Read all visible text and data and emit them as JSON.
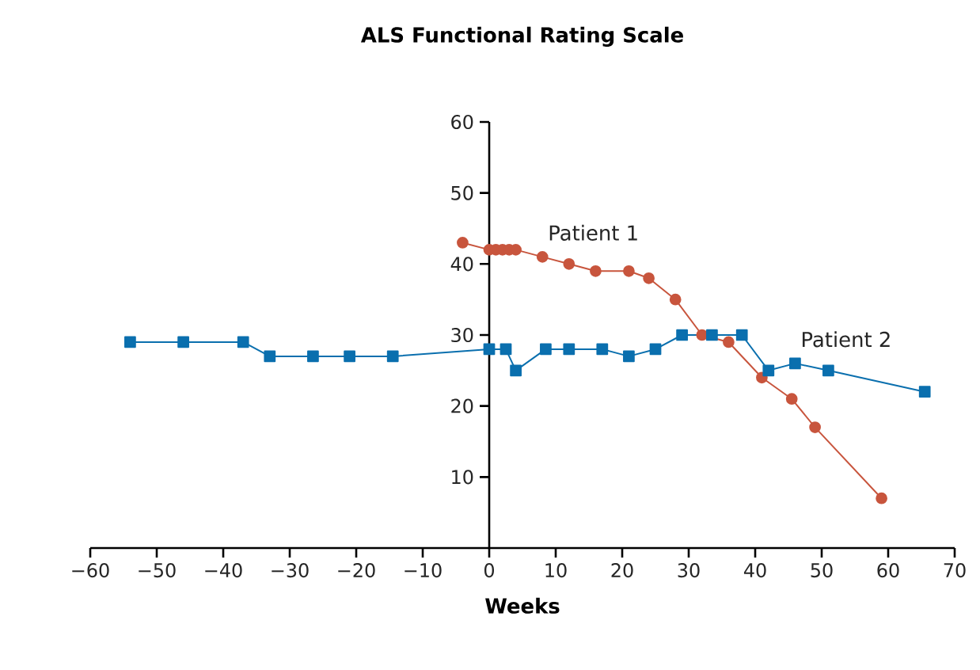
{
  "chart_data": {
    "type": "line",
    "title": "ALS Functional Rating Scale",
    "xlabel": "Weeks",
    "xlim": [
      -60,
      70
    ],
    "xticks": [
      {
        "value": -60,
        "label": "−60"
      },
      {
        "value": -50,
        "label": "−50"
      },
      {
        "value": -40,
        "label": "−40"
      },
      {
        "value": -30,
        "label": "−30"
      },
      {
        "value": -20,
        "label": "−20"
      },
      {
        "value": -10,
        "label": "−10"
      },
      0,
      10,
      20,
      30,
      40,
      50,
      60,
      70
    ],
    "ylim": [
      0,
      60
    ],
    "yticks": [
      10,
      20,
      30,
      40,
      50,
      60
    ],
    "grid": false,
    "legend": false,
    "series": [
      {
        "name": "Patient 1",
        "color": "#c8553d",
        "marker": "circle",
        "x": [
          -4,
          0,
          1,
          2,
          3,
          4,
          8,
          12,
          16,
          21,
          24,
          28,
          32,
          36,
          41,
          45.5,
          49,
          59
        ],
        "values": [
          43,
          42,
          42,
          42,
          42,
          42,
          41,
          40,
          39,
          39,
          38,
          35,
          30,
          29,
          24,
          21,
          17,
          7
        ]
      },
      {
        "name": "Patient 2",
        "color": "#0a6fae",
        "marker": "square",
        "x": [
          -54,
          -46,
          -37,
          -33,
          -26.5,
          -21,
          -14.5,
          0,
          2.5,
          4,
          8.5,
          12,
          17,
          21,
          25,
          29,
          33.5,
          38,
          42,
          46,
          51,
          65.5
        ],
        "values": [
          29,
          29,
          29,
          27,
          27,
          27,
          27,
          28,
          28,
          25,
          28,
          28,
          28,
          27,
          28,
          30,
          30,
          30,
          25,
          26,
          25,
          22
        ]
      }
    ]
  }
}
